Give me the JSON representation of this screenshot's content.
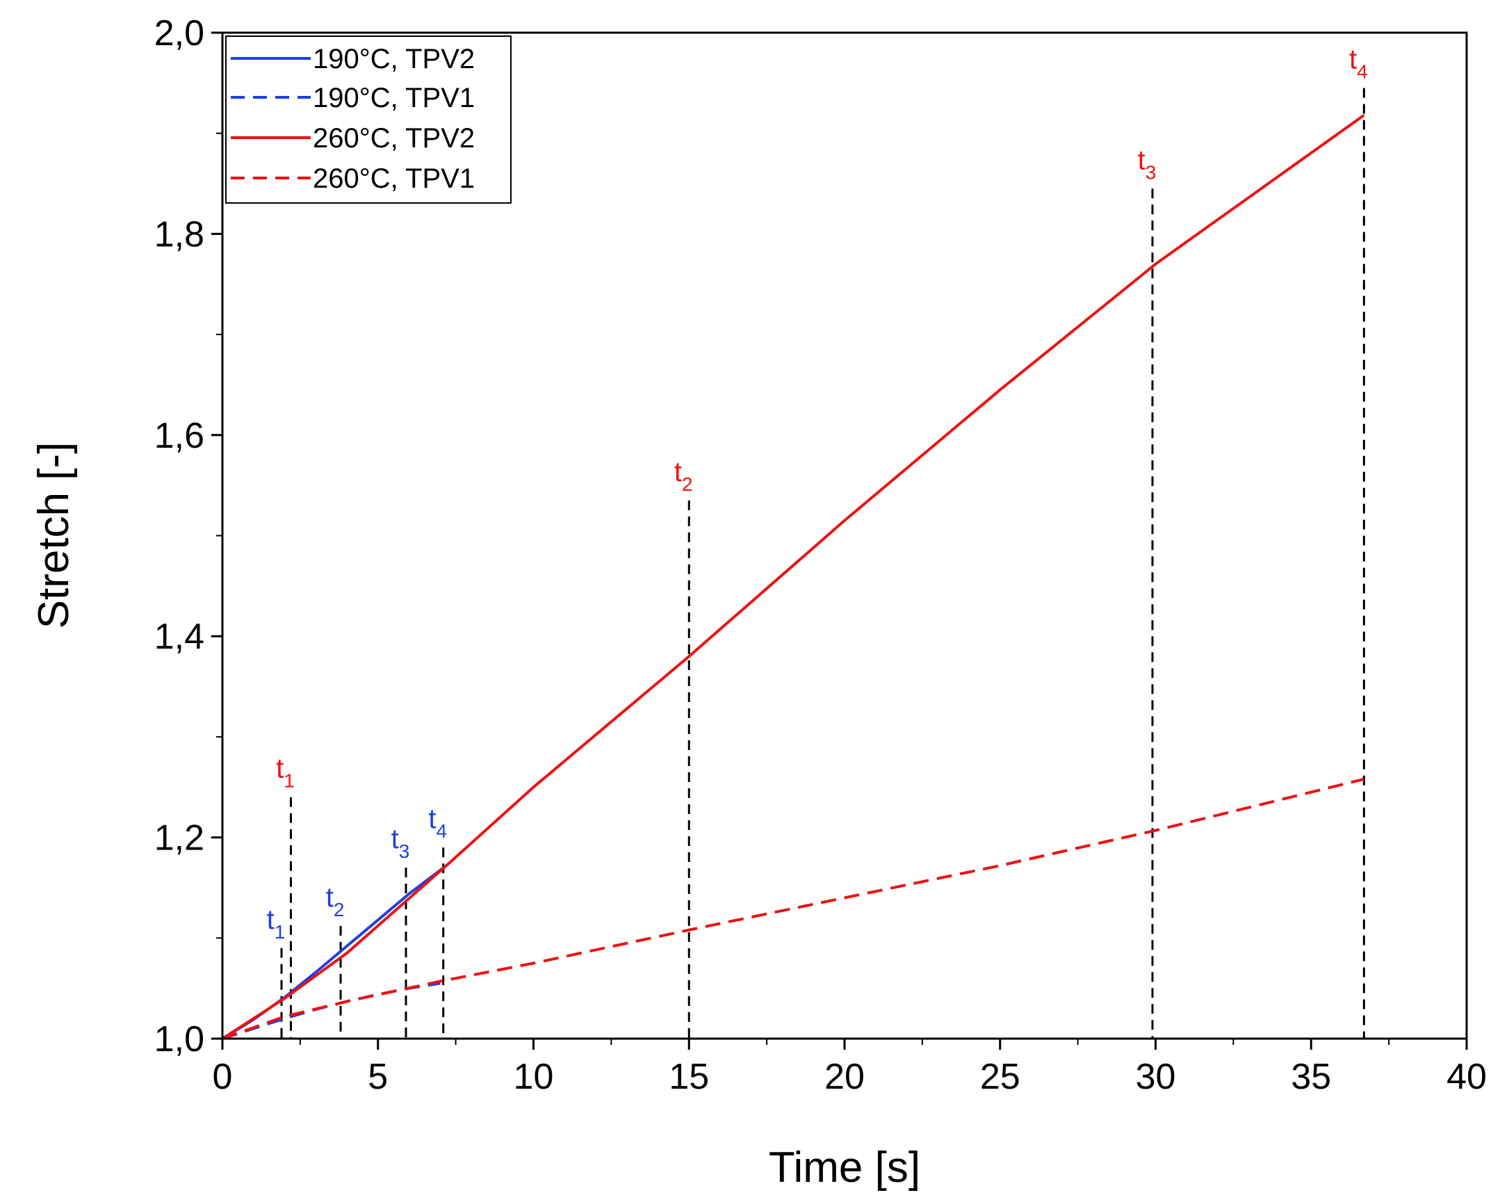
{
  "chart_data": {
    "type": "line",
    "title": "",
    "xlabel": "Time [s]",
    "ylabel": "Stretch [-]",
    "xlim": [
      0,
      40
    ],
    "ylim": [
      1.0,
      2.0
    ],
    "xticks": [
      0,
      5,
      10,
      15,
      20,
      25,
      30,
      35,
      40
    ],
    "xtick_labels": [
      "0",
      "5",
      "10",
      "15",
      "20",
      "25",
      "30",
      "35",
      "40"
    ],
    "yticks": [
      1.0,
      1.2,
      1.4,
      1.6,
      1.8,
      2.0
    ],
    "ytick_labels": [
      "1,0",
      "1,2",
      "1,4",
      "1,6",
      "1,8",
      "2,0"
    ],
    "grid": false,
    "legend_position": "top-left",
    "series": [
      {
        "name": "190°C, TPV2",
        "color": "#1f3fe0",
        "dash": "solid",
        "x": [
          0,
          1,
          2,
          3,
          4,
          5,
          6,
          7.2
        ],
        "y": [
          1.0,
          1.019,
          1.041,
          1.066,
          1.092,
          1.118,
          1.144,
          1.172
        ]
      },
      {
        "name": "190°C, TPV1",
        "color": "#1f3fe0",
        "dash": "dashed",
        "x": [
          0,
          1,
          2,
          3,
          4,
          5,
          6,
          7.0
        ],
        "y": [
          1.0,
          1.01,
          1.02,
          1.029,
          1.037,
          1.044,
          1.05,
          1.055
        ]
      },
      {
        "name": "260°C, TPV2",
        "color": "#ee1111",
        "dash": "solid",
        "x": [
          0,
          2,
          4,
          7.2,
          10,
          15,
          20,
          25,
          30,
          36.7
        ],
        "y": [
          1.0,
          1.04,
          1.085,
          1.172,
          1.25,
          1.38,
          1.515,
          1.645,
          1.77,
          1.918
        ]
      },
      {
        "name": "260°C, TPV1",
        "color": "#ee1111",
        "dash": "dashed",
        "x": [
          0,
          2,
          4,
          7,
          10,
          15,
          20,
          25,
          30,
          36.7
        ],
        "y": [
          1.0,
          1.022,
          1.037,
          1.057,
          1.075,
          1.108,
          1.14,
          1.172,
          1.207,
          1.258
        ]
      }
    ],
    "markers": [
      {
        "label": "t",
        "sub": "1",
        "color": "#1f3fe0",
        "x": 1.9,
        "y_top": 1.09
      },
      {
        "label": "t",
        "sub": "2",
        "color": "#1f3fe0",
        "x": 3.8,
        "y_top": 1.112
      },
      {
        "label": "t",
        "sub": "3",
        "color": "#1f3fe0",
        "x": 5.9,
        "y_top": 1.17
      },
      {
        "label": "t",
        "sub": "4",
        "color": "#1f3fe0",
        "x": 7.1,
        "y_top": 1.19
      },
      {
        "label": "t",
        "sub": "1",
        "color": "#ee1111",
        "x": 2.2,
        "y_top": 1.24
      },
      {
        "label": "t",
        "sub": "2",
        "color": "#ee1111",
        "x": 15.0,
        "y_top": 1.535
      },
      {
        "label": "t",
        "sub": "3",
        "color": "#ee1111",
        "x": 29.9,
        "y_top": 1.845
      },
      {
        "label": "t",
        "sub": "4",
        "color": "#ee1111",
        "x": 36.7,
        "y_top": 1.945
      }
    ]
  }
}
